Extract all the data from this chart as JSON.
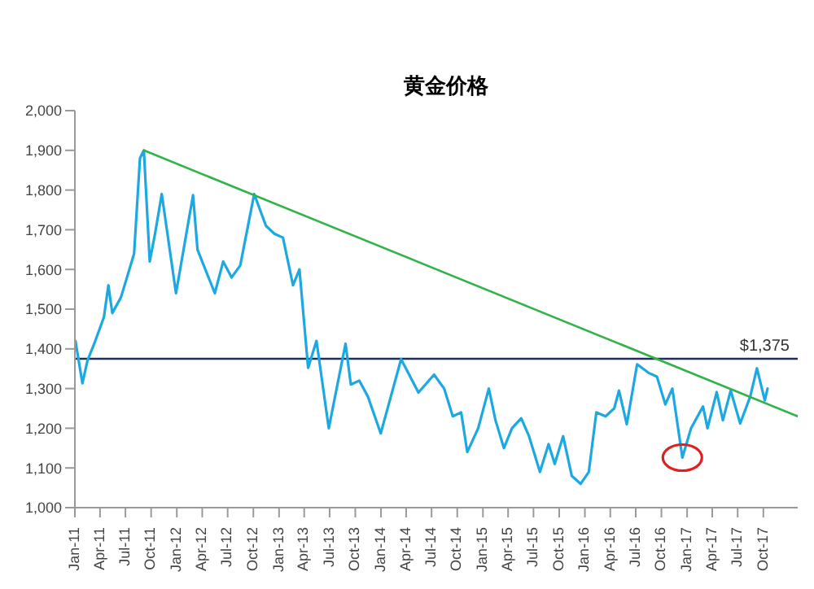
{
  "chart_data": {
    "type": "line",
    "title": "黄金价格",
    "xlim": [
      "2011-01-01",
      "2018-02-01"
    ],
    "xticks": [
      {
        "value": "2011-01-01",
        "label": "Jan-11"
      },
      {
        "value": "2011-04-01",
        "label": "Apr-11"
      },
      {
        "value": "2011-07-01",
        "label": "Jul-11"
      },
      {
        "value": "2011-10-01",
        "label": "Oct-11"
      },
      {
        "value": "2012-01-01",
        "label": "Jan-12"
      },
      {
        "value": "2012-04-01",
        "label": "Apr-12"
      },
      {
        "value": "2012-07-01",
        "label": "Jul-12"
      },
      {
        "value": "2012-10-01",
        "label": "Oct-12"
      },
      {
        "value": "2013-01-01",
        "label": "Jan-13"
      },
      {
        "value": "2013-04-01",
        "label": "Apr-13"
      },
      {
        "value": "2013-07-01",
        "label": "Jul-13"
      },
      {
        "value": "2013-10-01",
        "label": "Oct-13"
      },
      {
        "value": "2014-01-01",
        "label": "Jan-14"
      },
      {
        "value": "2014-04-01",
        "label": "Apr-14"
      },
      {
        "value": "2014-07-01",
        "label": "Jul-14"
      },
      {
        "value": "2014-10-01",
        "label": "Oct-14"
      },
      {
        "value": "2015-01-01",
        "label": "Jan-15"
      },
      {
        "value": "2015-04-01",
        "label": "Apr-15"
      },
      {
        "value": "2015-07-01",
        "label": "Jul-15"
      },
      {
        "value": "2015-10-01",
        "label": "Oct-15"
      },
      {
        "value": "2016-01-01",
        "label": "Jan-16"
      },
      {
        "value": "2016-04-01",
        "label": "Apr-16"
      },
      {
        "value": "2016-07-01",
        "label": "Jul-16"
      },
      {
        "value": "2016-10-01",
        "label": "Oct-16"
      },
      {
        "value": "2017-01-01",
        "label": "Jan-17"
      },
      {
        "value": "2017-04-01",
        "label": "Apr-17"
      },
      {
        "value": "2017-07-01",
        "label": "Jul-17"
      },
      {
        "value": "2017-10-01",
        "label": "Oct-17"
      }
    ],
    "ylim": [
      1000,
      2000
    ],
    "yticks": [
      {
        "value": 1000,
        "label": "1,000"
      },
      {
        "value": 1100,
        "label": "1,100"
      },
      {
        "value": 1200,
        "label": "1,200"
      },
      {
        "value": 1300,
        "label": "1,300"
      },
      {
        "value": 1400,
        "label": "1,400"
      },
      {
        "value": 1500,
        "label": "1,500"
      },
      {
        "value": 1600,
        "label": "1,600"
      },
      {
        "value": 1700,
        "label": "1,700"
      },
      {
        "value": 1800,
        "label": "1,800"
      },
      {
        "value": 1900,
        "label": "1,900"
      },
      {
        "value": 2000,
        "label": "2,000"
      }
    ],
    "marker": "none",
    "line_style": "solid",
    "ref_lines": [
      {
        "axis": "y",
        "value": 1375,
        "label": "$1,375",
        "color": "#1f2d5a"
      }
    ],
    "series": [
      {
        "color": "#1ca9e1",
        "x": [
          "2011-01-03",
          "2011-01-28",
          "2011-02-15",
          "2011-03-15",
          "2011-04-15",
          "2011-05-01",
          "2011-05-15",
          "2011-06-15",
          "2011-07-15",
          "2011-08-01",
          "2011-08-22",
          "2011-09-05",
          "2011-09-26",
          "2011-10-15",
          "2011-11-08",
          "2011-12-29",
          "2012-02-28",
          "2012-03-15",
          "2012-05-16",
          "2012-06-15",
          "2012-07-15",
          "2012-08-15",
          "2012-10-04",
          "2012-11-15",
          "2012-12-15",
          "2013-01-15",
          "2013-02-20",
          "2013-03-15",
          "2013-04-15",
          "2013-05-15",
          "2013-06-28",
          "2013-08-27",
          "2013-09-15",
          "2013-10-15",
          "2013-11-15",
          "2013-12-31",
          "2014-03-14",
          "2014-05-15",
          "2014-07-10",
          "2014-08-15",
          "2014-09-15",
          "2014-10-15",
          "2014-11-06",
          "2014-12-15",
          "2015-01-22",
          "2015-02-15",
          "2015-03-17",
          "2015-04-15",
          "2015-05-18",
          "2015-06-15",
          "2015-07-24",
          "2015-08-24",
          "2015-09-15",
          "2015-10-15",
          "2015-11-15",
          "2015-12-17",
          "2016-01-15",
          "2016-02-11",
          "2016-03-15",
          "2016-04-15",
          "2016-05-02",
          "2016-05-30",
          "2016-07-06",
          "2016-08-15",
          "2016-09-15",
          "2016-10-15",
          "2016-11-09",
          "2016-12-15",
          "2017-01-15",
          "2017-02-27",
          "2017-03-15",
          "2017-04-17",
          "2017-05-09",
          "2017-06-06",
          "2017-07-10",
          "2017-08-15",
          "2017-09-08",
          "2017-10-06",
          "2017-10-16"
        ],
        "values": [
          1420,
          1313,
          1370,
          1420,
          1480,
          1560,
          1490,
          1530,
          1600,
          1640,
          1880,
          1900,
          1620,
          1690,
          1790,
          1540,
          1787,
          1650,
          1540,
          1620,
          1580,
          1610,
          1790,
          1710,
          1690,
          1680,
          1560,
          1600,
          1352,
          1420,
          1200,
          1413,
          1310,
          1320,
          1280,
          1187,
          1374,
          1290,
          1335,
          1300,
          1230,
          1240,
          1140,
          1200,
          1300,
          1220,
          1150,
          1200,
          1225,
          1180,
          1090,
          1160,
          1110,
          1180,
          1080,
          1060,
          1090,
          1240,
          1230,
          1250,
          1295,
          1210,
          1361,
          1340,
          1330,
          1260,
          1300,
          1126,
          1200,
          1255,
          1200,
          1291,
          1220,
          1295,
          1212,
          1280,
          1351,
          1270,
          1300
        ]
      },
      {
        "color": "#33b24a",
        "x": [
          "2011-09-05",
          "2018-02-01"
        ],
        "values": [
          1900,
          1230
        ]
      }
    ]
  }
}
